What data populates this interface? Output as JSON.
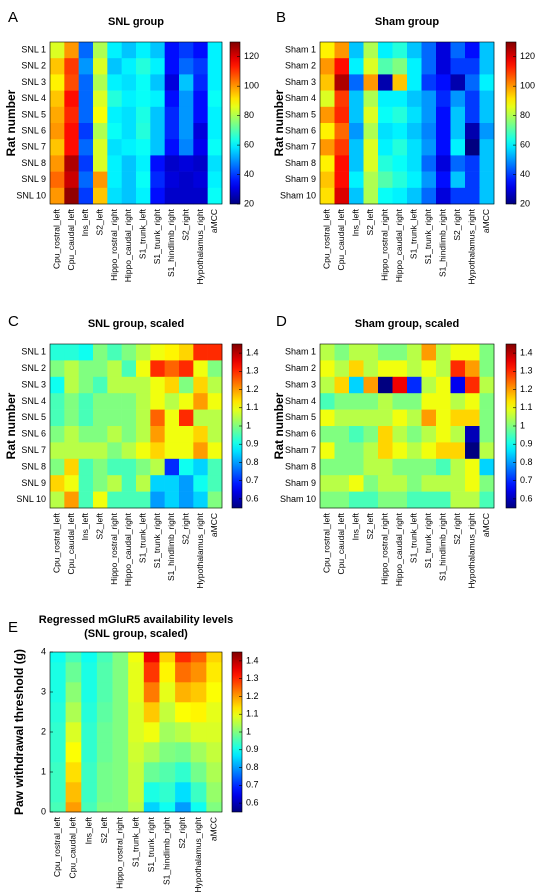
{
  "chart_data": [
    {
      "type": "heatmap",
      "panel_label": "A",
      "title": "SNL group",
      "ylabel": "Rat number",
      "colormap": "jet",
      "categories": [
        "Cpu_rostral_left",
        "Cpu_caudal_left",
        "Ins_left",
        "S2_left",
        "Hippo_rostral_right",
        "Hippo_caudal_right",
        "S1_trunk_left",
        "S1_trunk_right",
        "S1_hindlimb_right",
        "S2_right",
        "Hypothalamus_right",
        "aMCC"
      ],
      "rows": [
        "SNL 1",
        "SNL 2",
        "SNL 3",
        "SNL 4",
        "SNL 5",
        "SNL 6",
        "SNL 7",
        "SNL 8",
        "SNL 9",
        "SNL 10"
      ],
      "values": [
        [
          85,
          100,
          45,
          80,
          60,
          55,
          60,
          55,
          35,
          40,
          35,
          60
        ],
        [
          95,
          110,
          50,
          85,
          55,
          60,
          65,
          60,
          35,
          45,
          40,
          60
        ],
        [
          90,
          108,
          45,
          80,
          60,
          58,
          62,
          55,
          30,
          55,
          38,
          60
        ],
        [
          95,
          115,
          45,
          85,
          65,
          60,
          62,
          60,
          35,
          50,
          35,
          62
        ],
        [
          98,
          112,
          45,
          88,
          60,
          58,
          64,
          55,
          38,
          50,
          35,
          60
        ],
        [
          100,
          115,
          40,
          80,
          62,
          58,
          65,
          55,
          38,
          50,
          30,
          60
        ],
        [
          95,
          115,
          45,
          85,
          58,
          60,
          62,
          55,
          35,
          48,
          32,
          62
        ],
        [
          100,
          125,
          40,
          85,
          60,
          55,
          60,
          35,
          28,
          30,
          28,
          58
        ],
        [
          105,
          122,
          45,
          100,
          60,
          55,
          62,
          38,
          30,
          28,
          30,
          60
        ],
        [
          100,
          128,
          40,
          95,
          58,
          55,
          60,
          35,
          28,
          28,
          28,
          62
        ]
      ],
      "zlim": [
        20,
        130
      ],
      "zticks": [
        20,
        40,
        60,
        80,
        100,
        120
      ]
    },
    {
      "type": "heatmap",
      "panel_label": "B",
      "title": "Sham group",
      "ylabel": "Rat number",
      "colormap": "jet",
      "categories": [
        "Cpu_rostral_left",
        "Cpu_caudal_left",
        "Ins_left",
        "S2_left",
        "Hippo_rostral_right",
        "Hippo_caudal_right",
        "S1_trunk_left",
        "S1_trunk_right",
        "S1_hindlimb_right",
        "S2_right",
        "Hypothalamus_right",
        "aMCC"
      ],
      "rows": [
        "Sham 1",
        "Sham 2",
        "Sham 3",
        "Sham 4",
        "Sham 5",
        "Sham 6",
        "Sham 7",
        "Sham 8",
        "Sham 9",
        "Sham 10"
      ],
      "values": [
        [
          90,
          100,
          55,
          80,
          60,
          65,
          55,
          45,
          30,
          45,
          35,
          55
        ],
        [
          100,
          115,
          60,
          85,
          70,
          75,
          60,
          45,
          30,
          40,
          40,
          55
        ],
        [
          95,
          125,
          45,
          100,
          25,
          95,
          60,
          40,
          35,
          25,
          45,
          60
        ],
        [
          85,
          110,
          55,
          80,
          60,
          60,
          55,
          50,
          38,
          50,
          40,
          55
        ],
        [
          100,
          112,
          55,
          85,
          62,
          65,
          58,
          50,
          35,
          55,
          40,
          55
        ],
        [
          90,
          105,
          50,
          80,
          58,
          60,
          55,
          48,
          35,
          55,
          25,
          50
        ],
        [
          100,
          110,
          55,
          85,
          60,
          65,
          58,
          50,
          35,
          60,
          20,
          55
        ],
        [
          90,
          115,
          55,
          85,
          65,
          62,
          58,
          45,
          30,
          45,
          40,
          55
        ],
        [
          95,
          115,
          60,
          80,
          70,
          65,
          60,
          50,
          35,
          55,
          40,
          55
        ],
        [
          92,
          120,
          55,
          80,
          62,
          60,
          55,
          45,
          30,
          40,
          40,
          55
        ]
      ],
      "zlim": [
        20,
        130
      ],
      "zticks": [
        20,
        40,
        60,
        80,
        100,
        120
      ]
    },
    {
      "type": "heatmap",
      "panel_label": "C",
      "title": "SNL group, scaled",
      "ylabel": "Rat number",
      "colormap": "jet",
      "categories": [
        "Cpu_rostral_left",
        "Cpu_caudal_left",
        "Ins_left",
        "S2_left",
        "Hippo_rostral_right",
        "Hippo_caudal_right",
        "S1_trunk_left",
        "S1_trunk_right",
        "S1_hindlimb_right",
        "S2_right",
        "Hypothalamus_right",
        "aMCC"
      ],
      "rows": [
        "SNL 1",
        "SNL 2",
        "SNL 3",
        "SNL 4",
        "SNL 5",
        "SNL 6",
        "SNL 7",
        "SNL 8",
        "SNL 9",
        "SNL 10"
      ],
      "values": [
        [
          0.92,
          0.92,
          0.9,
          1.0,
          0.95,
          1.0,
          1.05,
          1.1,
          1.12,
          1.15,
          1.3,
          1.3
        ],
        [
          1.0,
          1.05,
          1.0,
          1.0,
          1.05,
          0.95,
          1.1,
          1.3,
          1.25,
          1.3,
          1.1,
          1.0
        ],
        [
          0.9,
          1.05,
          1.0,
          0.95,
          1.05,
          1.05,
          1.05,
          1.1,
          1.15,
          1.0,
          1.15,
          1.05
        ],
        [
          0.95,
          1.0,
          0.95,
          1.0,
          1.0,
          1.0,
          1.05,
          1.1,
          1.05,
          1.1,
          1.2,
          1.1
        ],
        [
          0.95,
          1.0,
          0.95,
          1.0,
          1.0,
          1.0,
          1.05,
          1.25,
          1.1,
          1.3,
          1.05,
          1.05
        ],
        [
          1.0,
          1.05,
          1.0,
          1.0,
          1.05,
          1.0,
          1.05,
          1.2,
          1.1,
          1.1,
          1.15,
          1.05
        ],
        [
          1.05,
          1.05,
          1.05,
          1.05,
          1.0,
          1.05,
          1.1,
          1.15,
          1.1,
          1.1,
          1.2,
          1.1
        ],
        [
          1.0,
          1.15,
          0.95,
          1.0,
          0.95,
          0.95,
          1.0,
          1.05,
          0.7,
          0.9,
          0.85,
          0.95
        ],
        [
          1.15,
          1.1,
          0.95,
          1.0,
          1.05,
          0.95,
          1.05,
          0.85,
          0.85,
          0.8,
          0.9,
          0.95
        ],
        [
          1.05,
          1.2,
          0.95,
          1.1,
          0.95,
          0.95,
          0.95,
          0.8,
          0.85,
          0.8,
          0.85,
          1.0
        ]
      ],
      "zlim": [
        0.55,
        1.45
      ],
      "zticks": [
        0.6,
        0.7,
        0.8,
        0.9,
        1,
        1.1,
        1.2,
        1.3,
        1.4
      ]
    },
    {
      "type": "heatmap",
      "panel_label": "D",
      "title": "Sham group, scaled",
      "ylabel": "Rat number",
      "colormap": "jet",
      "categories": [
        "Cpu_rostral_left",
        "Cpu_caudal_left",
        "Ins_left",
        "S2_left",
        "Hippo_rostral_right",
        "Hippo_caudal_right",
        "S1_trunk_left",
        "S1_trunk_right",
        "S1_hindlimb_right",
        "S2_right",
        "Hypothalamus_right",
        "aMCC"
      ],
      "rows": [
        "Sham 1",
        "Sham 2",
        "Sham 3",
        "Sham 4",
        "Sham 5",
        "Sham 6",
        "Sham 7",
        "Sham 8",
        "Sham 9",
        "Sham 10"
      ],
      "values": [
        [
          1.05,
          1.0,
          1.05,
          1.05,
          1.0,
          1.0,
          1.05,
          1.2,
          1.05,
          1.1,
          1.1,
          1.0
        ],
        [
          1.1,
          1.05,
          1.15,
          1.05,
          1.1,
          1.1,
          1.05,
          1.1,
          1.05,
          1.3,
          1.2,
          1.0
        ],
        [
          1.05,
          1.15,
          0.85,
          1.2,
          0.55,
          1.35,
          0.7,
          1.05,
          1.1,
          0.65,
          1.3,
          1.05
        ],
        [
          0.95,
          1.0,
          1.0,
          1.0,
          1.05,
          1.0,
          1.0,
          1.1,
          1.1,
          1.05,
          1.1,
          1.0
        ],
        [
          1.1,
          1.05,
          1.05,
          1.05,
          1.05,
          1.1,
          1.05,
          1.2,
          1.1,
          1.15,
          1.15,
          1.0
        ],
        [
          1.0,
          1.0,
          0.95,
          1.0,
          1.15,
          1.05,
          1.0,
          1.05,
          1.1,
          1.05,
          0.6,
          1.0
        ],
        [
          1.1,
          1.0,
          1.0,
          1.05,
          1.15,
          1.1,
          1.05,
          1.1,
          1.15,
          1.15,
          0.55,
          1.05
        ],
        [
          1.0,
          1.0,
          1.0,
          1.05,
          1.05,
          1.0,
          1.0,
          1.0,
          0.95,
          1.05,
          1.1,
          0.85
        ],
        [
          1.05,
          1.05,
          1.1,
          1.0,
          1.05,
          1.05,
          1.0,
          1.05,
          1.05,
          1.05,
          1.1,
          1.0
        ],
        [
          1.0,
          1.0,
          0.95,
          0.95,
          1.0,
          1.0,
          0.95,
          0.95,
          0.95,
          1.05,
          1.05,
          0.95
        ]
      ],
      "zlim": [
        0.55,
        1.45
      ],
      "zticks": [
        0.6,
        0.7,
        0.8,
        0.9,
        1,
        1.1,
        1.2,
        1.3,
        1.4
      ]
    },
    {
      "type": "heatmap",
      "panel_label": "E",
      "title": "Regressed mGluR5 availability levels",
      "subtitle": "(SNL group, scaled)",
      "ylabel": "Paw withdrawal threshold (g)",
      "colormap": "jet",
      "categories": [
        "Cpu_rostral_left",
        "Cpu_caudal_left",
        "Ins_left",
        "S2_left",
        "Hippo_rostral_right",
        "S1_trunk_left",
        "S1_trunk_right",
        "S1_hindlimb_right",
        "S2_right",
        "Hypothalamus_right",
        "aMCC"
      ],
      "y": [
        0,
        0.5,
        1,
        1.5,
        2,
        2.5,
        3,
        3.5,
        4
      ],
      "values": [
        [
          0.95,
          1.2,
          0.95,
          1.0,
          1.0,
          1.05,
          0.85,
          0.9,
          0.8,
          0.9,
          1.0
        ],
        [
          0.94,
          1.17,
          0.94,
          0.99,
          1.0,
          1.06,
          0.91,
          0.93,
          0.86,
          0.94,
          1.02
        ],
        [
          0.94,
          1.14,
          0.94,
          0.99,
          1.0,
          1.06,
          0.98,
          0.96,
          0.93,
          0.99,
          1.04
        ],
        [
          0.93,
          1.11,
          0.93,
          0.98,
          1.0,
          1.07,
          1.04,
          1.0,
          0.99,
          1.03,
          1.06
        ],
        [
          0.93,
          1.08,
          0.93,
          0.98,
          1.0,
          1.08,
          1.1,
          1.03,
          1.05,
          1.08,
          1.08
        ],
        [
          0.92,
          1.04,
          0.92,
          0.97,
          1.0,
          1.08,
          1.16,
          1.06,
          1.11,
          1.12,
          1.09
        ],
        [
          0.91,
          1.01,
          0.91,
          0.96,
          1.0,
          1.09,
          1.23,
          1.09,
          1.18,
          1.16,
          1.11
        ],
        [
          0.91,
          0.98,
          0.91,
          0.96,
          1.0,
          1.09,
          1.29,
          1.12,
          1.24,
          1.21,
          1.13
        ],
        [
          0.9,
          0.95,
          0.9,
          0.95,
          1.0,
          1.1,
          1.35,
          1.15,
          1.3,
          1.25,
          1.15
        ]
      ],
      "ylim": [
        0,
        4
      ],
      "yticks": [
        0,
        1,
        2,
        3,
        4
      ],
      "zlim": [
        0.55,
        1.45
      ],
      "zticks": [
        0.6,
        0.7,
        0.8,
        0.9,
        1,
        1.1,
        1.2,
        1.3,
        1.4
      ]
    }
  ]
}
